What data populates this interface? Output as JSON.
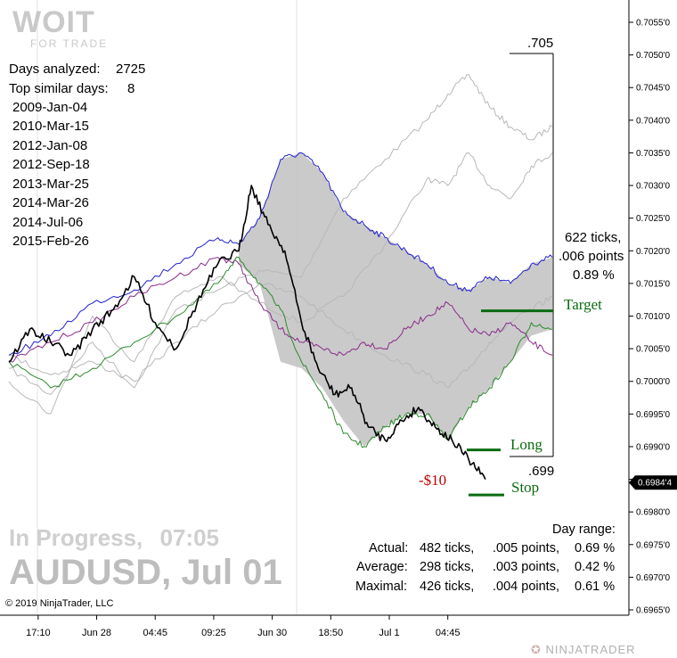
{
  "header": {
    "logo_text": "WOIT",
    "logo_subtext": "FOR TRADE"
  },
  "info": {
    "days_analyzed_label": "Days analyzed:",
    "days_analyzed_value": "2725",
    "top_similar_label": "Top similar days:",
    "top_similar_value": "8",
    "similar_days": [
      "2009-Jan-04",
      "2010-Mar-15",
      "2012-Jan-08",
      "2012-Sep-18",
      "2013-Mar-25",
      "2014-Mar-26",
      "2014-Jul-06",
      "2015-Feb-26"
    ]
  },
  "status": {
    "state": "In Progress,",
    "time": "07:05",
    "title": "AUDUSD, Jul 01"
  },
  "range_box": {
    "high_label": ".705",
    "low_label": ".699",
    "ticks_text": "622 ticks,",
    "points_text": ".006 points",
    "percent_text": "0.89 %"
  },
  "levels": {
    "target_label": "Target",
    "long_label": "Long",
    "stop_label": "Stop",
    "pnl_label": "-$10",
    "target_value": 0.70108,
    "long_value": 0.69895,
    "stop_value": 0.69826
  },
  "day_range": {
    "heading": "Day range:",
    "rows": [
      {
        "label": "Actual:",
        "ticks": "482 ticks,",
        "points": ".005 points,",
        "percent": "0.69 %"
      },
      {
        "label": "Average:",
        "ticks": "298 ticks,",
        "points": ".003 points,",
        "percent": "0.42 %"
      },
      {
        "label": "Maximal:",
        "ticks": "426 ticks,",
        "points": ".004 points,",
        "percent": "0.61 %"
      }
    ]
  },
  "footer": {
    "copyright": "© 2019 NinjaTrader, LLC",
    "brand": "NINJATRADER"
  },
  "colors": {
    "black_series": "#000000",
    "blue_series": "#2020d0",
    "purple_series": "#8a2a8a",
    "green_series": "#2c8a2c",
    "gray_series": "#b8b8b8",
    "band_fill": "#c4c4c4",
    "level_line": "#0a6b10",
    "current_price_badge": "#000000"
  },
  "chart_data": {
    "type": "line",
    "symbol": "AUDUSD",
    "y_axis": {
      "min": 0.6965,
      "max": 0.7055,
      "ticks": [
        "0.7055'0",
        "0.7050'0",
        "0.7045'0",
        "0.7040'0",
        "0.7035'0",
        "0.7030'0",
        "0.7025'0",
        "0.7020'0",
        "0.7015'0",
        "0.7010'0",
        "0.7005'0",
        "0.7000'0",
        "0.6995'0",
        "0.6990'0",
        "0.6985'0",
        "0.6980'0",
        "0.6975'0",
        "0.6970'0",
        "0.6965'0"
      ],
      "tick_values": [
        0.7055,
        0.705,
        0.7045,
        0.704,
        0.7035,
        0.703,
        0.7025,
        0.702,
        0.7015,
        0.701,
        0.7005,
        0.7,
        0.6995,
        0.699,
        0.6985,
        0.698,
        0.6975,
        0.697,
        0.6965
      ]
    },
    "x_axis": {
      "labels": [
        "17:10",
        "Jun 28",
        "04:45",
        "09:25",
        "Jun 30",
        "18:50",
        "Jul 1",
        "04:45"
      ],
      "label_positions": [
        0.07,
        0.21,
        0.35,
        0.49,
        0.63,
        0.77,
        0.91,
        1.05
      ],
      "range": [
        0,
        1.3
      ]
    },
    "current_price": {
      "value": 0.69845,
      "label": "0.6984'4"
    },
    "band": {
      "x": [
        0.55,
        0.6,
        0.65,
        0.7,
        0.75,
        0.8,
        0.85,
        0.9,
        0.95,
        1.0,
        1.05,
        1.1,
        1.15,
        1.2,
        1.25,
        1.3
      ],
      "upper": [
        0.7021,
        0.7025,
        0.7034,
        0.7035,
        0.7032,
        0.7026,
        0.7024,
        0.7022,
        0.702,
        0.7018,
        0.7015,
        0.7014,
        0.7016,
        0.7015,
        0.7018,
        0.7019
      ],
      "lower": [
        0.7018,
        0.7015,
        0.7003,
        0.7002,
        0.6999,
        0.6994,
        0.699,
        0.6993,
        0.6995,
        0.6995,
        0.6991,
        0.6996,
        0.6999,
        0.7003,
        0.7007,
        0.7008
      ]
    },
    "series": [
      {
        "color_key": "gray_series",
        "width": 1,
        "x": [
          0.0,
          0.1,
          0.2,
          0.3,
          0.4,
          0.5,
          0.6,
          0.7,
          0.8,
          0.9,
          1.0,
          1.05,
          1.1,
          1.15,
          1.2,
          1.25,
          1.3
        ],
        "y": [
          0.7002,
          0.6998,
          0.7006,
          0.6999,
          0.7011,
          0.7014,
          0.7017,
          0.7016,
          0.7028,
          0.7034,
          0.704,
          0.7044,
          0.7047,
          0.7042,
          0.7039,
          0.7037,
          0.7039
        ]
      },
      {
        "color_key": "gray_series",
        "width": 1,
        "x": [
          0.0,
          0.1,
          0.2,
          0.3,
          0.4,
          0.5,
          0.6,
          0.7,
          0.8,
          0.9,
          1.0,
          1.05,
          1.1,
          1.15,
          1.2,
          1.25,
          1.3
        ],
        "y": [
          0.7,
          0.6995,
          0.701,
          0.7003,
          0.7013,
          0.7016,
          0.7012,
          0.7009,
          0.7013,
          0.7021,
          0.7031,
          0.703,
          0.7035,
          0.703,
          0.7028,
          0.7033,
          0.7035
        ]
      },
      {
        "color_key": "gray_series",
        "width": 1,
        "x": [
          0.0,
          0.1,
          0.2,
          0.3,
          0.4,
          0.5,
          0.6,
          0.7,
          0.8,
          0.9,
          1.0,
          1.05,
          1.1,
          1.15,
          1.2,
          1.25,
          1.3
        ],
        "y": [
          0.7004,
          0.7001,
          0.7003,
          0.7,
          0.7006,
          0.7011,
          0.7015,
          0.7013,
          0.7008,
          0.7004,
          0.7001,
          0.6999,
          0.7002,
          0.7006,
          0.7009,
          0.7011,
          0.7013
        ]
      },
      {
        "color_key": "blue_series",
        "width": 1,
        "x": [
          0.0,
          0.1,
          0.2,
          0.3,
          0.4,
          0.5,
          0.55,
          0.6,
          0.65,
          0.7,
          0.75,
          0.8,
          0.85,
          0.9,
          0.95,
          1.0,
          1.05,
          1.1,
          1.15,
          1.2,
          1.25,
          1.3
        ],
        "y": [
          0.7004,
          0.7007,
          0.7012,
          0.7014,
          0.7018,
          0.7022,
          0.7021,
          0.7025,
          0.7034,
          0.7035,
          0.7032,
          0.7026,
          0.7024,
          0.7022,
          0.702,
          0.7018,
          0.7015,
          0.7014,
          0.7016,
          0.7015,
          0.7018,
          0.7019
        ]
      },
      {
        "color_key": "purple_series",
        "width": 1,
        "x": [
          0.0,
          0.1,
          0.2,
          0.3,
          0.4,
          0.5,
          0.55,
          0.6,
          0.65,
          0.7,
          0.75,
          0.8,
          0.85,
          0.9,
          0.95,
          1.0,
          1.05,
          1.1,
          1.15,
          1.2,
          1.25,
          1.3
        ],
        "y": [
          0.7003,
          0.7006,
          0.7009,
          0.7013,
          0.7016,
          0.7019,
          0.7018,
          0.7012,
          0.7008,
          0.7006,
          0.7005,
          0.7004,
          0.7006,
          0.7005,
          0.7008,
          0.701,
          0.7012,
          0.7008,
          0.7007,
          0.7009,
          0.7006,
          0.7004
        ]
      },
      {
        "color_key": "green_series",
        "width": 1,
        "x": [
          0.0,
          0.1,
          0.2,
          0.3,
          0.4,
          0.5,
          0.55,
          0.6,
          0.65,
          0.7,
          0.75,
          0.8,
          0.85,
          0.9,
          0.95,
          1.0,
          1.05,
          1.1,
          1.15,
          1.2,
          1.25,
          1.3
        ],
        "y": [
          0.7003,
          0.6999,
          0.7002,
          0.7006,
          0.701,
          0.7015,
          0.7019,
          0.7015,
          0.7011,
          0.7003,
          0.6998,
          0.6992,
          0.699,
          0.6993,
          0.6995,
          0.6995,
          0.6991,
          0.6996,
          0.6999,
          0.7003,
          0.7009,
          0.7008
        ]
      },
      {
        "color_key": "black_series",
        "width": 1.6,
        "x": [
          0.0,
          0.05,
          0.1,
          0.15,
          0.2,
          0.25,
          0.3,
          0.35,
          0.4,
          0.45,
          0.5,
          0.55,
          0.58,
          0.62,
          0.66,
          0.7,
          0.74,
          0.78,
          0.82,
          0.86,
          0.9,
          0.94,
          0.98,
          1.02,
          1.06,
          1.1,
          1.14
        ],
        "y": [
          0.7003,
          0.7008,
          0.7006,
          0.7004,
          0.7008,
          0.7011,
          0.7016,
          0.7009,
          0.7005,
          0.7012,
          0.7018,
          0.702,
          0.703,
          0.7024,
          0.702,
          0.7009,
          0.7002,
          0.6998,
          0.6999,
          0.6993,
          0.6991,
          0.6994,
          0.6996,
          0.6993,
          0.6991,
          0.6988,
          0.6985
        ]
      }
    ]
  }
}
